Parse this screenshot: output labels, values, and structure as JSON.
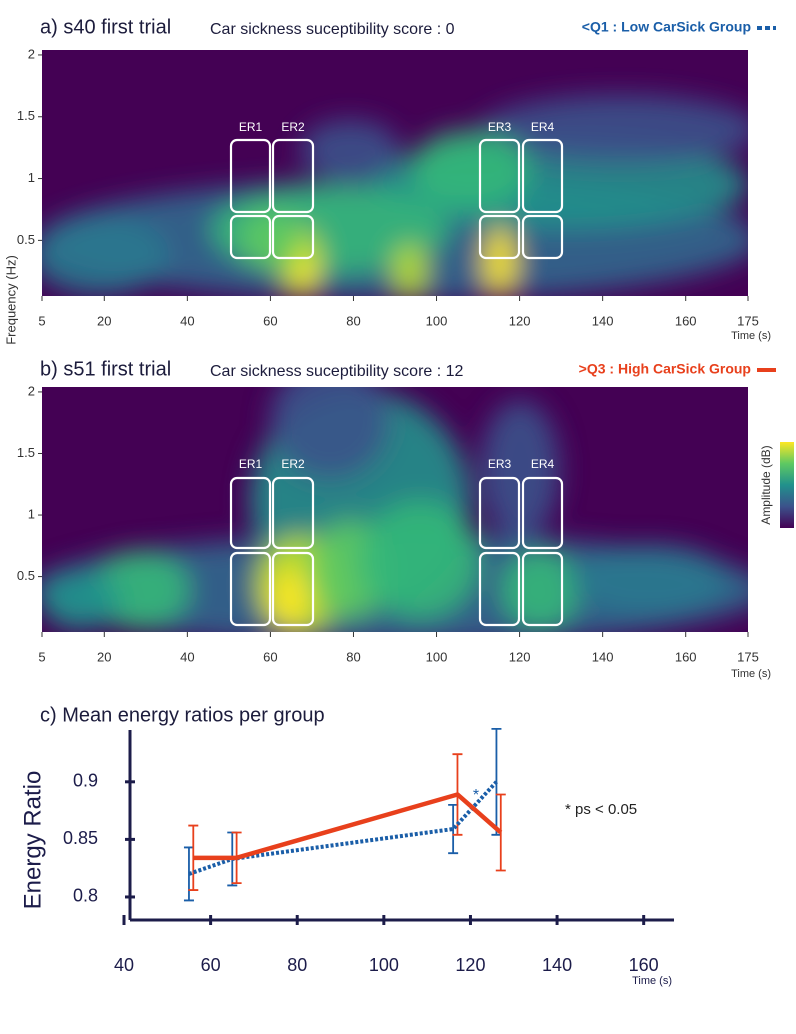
{
  "chart_data": [
    {
      "type": "spectrogram",
      "title": "a) s40 first trial",
      "subtitle": "Car sickness suceptibility score : 0",
      "xlabel": "Time (s)",
      "ylabel": "Frequency (Hz)",
      "xlim": [
        5,
        175
      ],
      "xticks": [
        5,
        20,
        40,
        60,
        80,
        100,
        120,
        140,
        160,
        175
      ],
      "ylim": [
        0.05,
        2.04
      ],
      "yticks": [
        0.5,
        1,
        1.5,
        2
      ],
      "regions": [
        "ER1",
        "ER2",
        "ER3",
        "ER4"
      ]
    },
    {
      "type": "spectrogram",
      "title": "b) s51 first trial",
      "subtitle": "Car sickness suceptibility score : 12",
      "xlabel": "Time (s)",
      "colorbar_label": "Amplitude (dB)",
      "xlim": [
        5,
        175
      ],
      "xticks": [
        5,
        20,
        40,
        60,
        80,
        100,
        120,
        140,
        160,
        175
      ],
      "ylim": [
        0.05,
        2.04
      ],
      "yticks": [
        0.5,
        1,
        1.5,
        2
      ],
      "regions": [
        "ER1",
        "ER2",
        "ER3",
        "ER4"
      ]
    },
    {
      "type": "line",
      "title": "c) Mean energy ratios per group",
      "xlabel": "Time (s)",
      "ylabel": "Energy Ratio",
      "xlim": [
        40,
        167
      ],
      "xticks": [
        40,
        60,
        80,
        100,
        120,
        140,
        160
      ],
      "ylim": [
        0.78,
        0.945
      ],
      "yticks": [
        0.8,
        0.85,
        0.9
      ],
      "series": [
        {
          "name": "<Q1 : Low CarSick Group",
          "color": "#1a5ea8",
          "line_style": "dotted",
          "x": [
            55,
            65,
            116,
            126
          ],
          "values": [
            0.82,
            0.833,
            0.859,
            0.9
          ],
          "errors": [
            0.023,
            0.023,
            0.021,
            0.046
          ]
        },
        {
          "name": ">Q3 : High CarSick Group",
          "color": "#e8401c",
          "line_style": "solid",
          "x": [
            56,
            66,
            117,
            127
          ],
          "values": [
            0.834,
            0.834,
            0.889,
            0.856
          ],
          "errors": [
            0.028,
            0.022,
            0.035,
            0.033
          ]
        }
      ],
      "annotations": [
        "*",
        "* ps < 0.05"
      ]
    }
  ]
}
